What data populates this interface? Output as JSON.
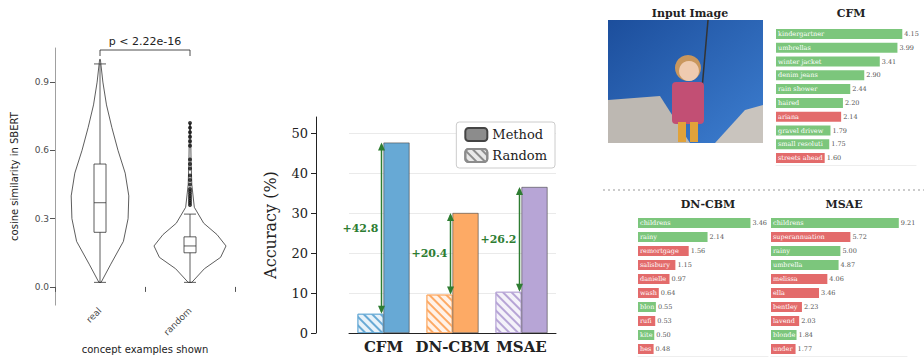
{
  "chart_data": [
    {
      "type": "violin",
      "y_label": "cosine similarity in SBERT",
      "x_label": "concept examples shown",
      "categories": [
        "real",
        "random"
      ],
      "ylim": [
        -0.08,
        1.05
      ],
      "yticks": [
        {
          "value": 0,
          "label": "0.0"
        },
        0.3,
        0.6,
        0.9
      ],
      "annotation": "p < 2.22e-16",
      "box": [
        [
          0.02,
          0.24,
          0.37,
          0.54,
          0.98
        ],
        [
          0.02,
          0.15,
          0.18,
          0.22,
          0.32
        ]
      ],
      "density": [
        {
          "y": [
            0.02,
            0.1,
            0.2,
            0.3,
            0.4,
            0.5,
            0.6,
            0.7,
            0.8,
            0.9,
            1.0
          ],
          "values": [
            0.03,
            0.3,
            0.65,
            0.78,
            0.8,
            0.7,
            0.5,
            0.33,
            0.18,
            0.08,
            0.01
          ]
        },
        {
          "y": [
            0.02,
            0.08,
            0.13,
            0.18,
            0.23,
            0.28,
            0.35,
            0.45,
            0.55,
            0.65,
            0.72
          ],
          "values": [
            0.05,
            0.4,
            0.85,
            1.0,
            0.75,
            0.38,
            0.12,
            0.05,
            0.03,
            0.02,
            0.01
          ]
        }
      ],
      "outliers": [
        [],
        [
          0.36,
          0.37,
          0.38,
          0.39,
          0.4,
          0.41,
          0.42,
          0.43,
          0.45,
          0.47,
          0.49,
          0.52,
          0.54,
          0.56,
          0.62,
          0.64,
          0.66,
          0.68,
          0.7,
          0.72
        ]
      ],
      "color": "#333333"
    },
    {
      "type": "bar",
      "y_label": "Accuracy (%)",
      "categories": [
        "CFM",
        "DN-CBM",
        "MSAE"
      ],
      "colors": [
        "#67a9d5",
        "#fdaa65",
        "#b7a5d6"
      ],
      "series": [
        {
          "name": "Method",
          "color": "#8c8c8c",
          "marker": "solid",
          "values": [
            47.6,
            30.0,
            36.5
          ]
        },
        {
          "name": "Random",
          "color": "#8c8c8c",
          "marker": "hatch",
          "values": [
            4.8,
            9.6,
            10.3
          ]
        }
      ],
      "annotations": [
        "+42.8",
        "+20.4",
        "+26.2"
      ],
      "ylim": [
        0,
        54
      ],
      "yticks": [
        0,
        10,
        20,
        30,
        40,
        50
      ],
      "grid": true,
      "legend": "upper right"
    },
    {
      "type": "image",
      "title": "Input Image"
    },
    {
      "type": "bar",
      "orientation": "horizontal",
      "title": "CFM",
      "categories": [
        "kindergartner",
        "umbrellas",
        "winter jacket",
        "denim jeans",
        "rain shower",
        "haired",
        "ariana",
        "gravel drivew",
        "small resoluti",
        "streets ahead"
      ],
      "values": [
        4.15,
        3.99,
        3.41,
        2.9,
        2.44,
        2.2,
        2.14,
        1.79,
        1.75,
        1.6
      ],
      "value_labels": [
        "4.15",
        "3.99",
        "3.41",
        "2.90",
        "2.44",
        "2.20",
        "2.14",
        "1.79",
        "1.75",
        "1.60"
      ],
      "colors": [
        "#7cc67c",
        "#7cc67c",
        "#7cc67c",
        "#7cc67c",
        "#7cc67c",
        "#7cc67c",
        "#e36b6b",
        "#7cc67c",
        "#7cc67c",
        "#e36b6b"
      ],
      "xlim": [
        0,
        4.6
      ],
      "tick_labels": false,
      "data_labels": true
    },
    {
      "type": "bar",
      "orientation": "horizontal",
      "title": "DN-CBM",
      "categories": [
        "childrens",
        "rainy",
        "remortgage",
        "salisbury",
        "danielle",
        "wash",
        "blon",
        "rufi",
        "kite",
        "hes"
      ],
      "values": [
        3.46,
        2.14,
        1.56,
        1.15,
        0.97,
        0.64,
        0.55,
        0.53,
        0.5,
        0.48
      ],
      "value_labels": [
        "3.46",
        "2.14",
        "1.56",
        "1.15",
        "0.97",
        "0.64",
        "0.55",
        "0.53",
        "0.50",
        "0.48"
      ],
      "colors": [
        "#7cc67c",
        "#7cc67c",
        "#e36b6b",
        "#e36b6b",
        "#e36b6b",
        "#e36b6b",
        "#7cc67c",
        "#e36b6b",
        "#7cc67c",
        "#e36b6b"
      ],
      "xlim": [
        0,
        4.0
      ],
      "tick_labels": false,
      "data_labels": true
    },
    {
      "type": "bar",
      "orientation": "horizontal",
      "title": "MSAE",
      "categories": [
        "childrens",
        "superannuation",
        "rainy",
        "umbrella",
        "melissa",
        "ella",
        "bentley",
        "lavend",
        "blonde",
        "under"
      ],
      "values": [
        9.21,
        5.72,
        5.0,
        4.87,
        4.06,
        3.46,
        2.23,
        2.03,
        1.84,
        1.77
      ],
      "value_labels": [
        "9.21",
        "5.72",
        "5.00",
        "4.87",
        "4.06",
        "3.46",
        "2.23",
        "2.03",
        "1.84",
        "1.77"
      ],
      "colors": [
        "#7cc67c",
        "#e36b6b",
        "#7cc67c",
        "#7cc67c",
        "#e36b6b",
        "#e36b6b",
        "#e36b6b",
        "#e36b6b",
        "#7cc67c",
        "#e36b6b"
      ],
      "xlim": [
        0,
        9.8
      ],
      "tick_labels": false,
      "data_labels": true
    }
  ]
}
